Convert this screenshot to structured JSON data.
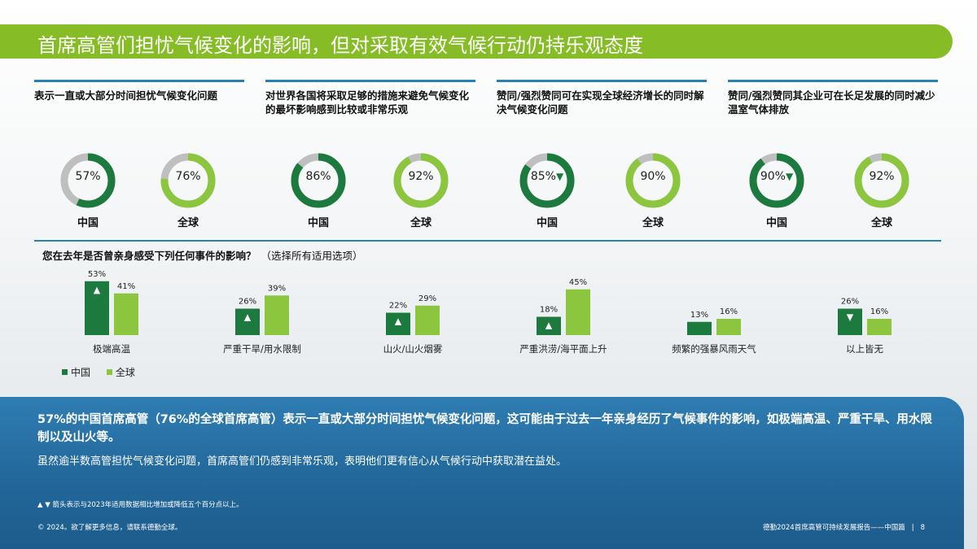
{
  "title": "首席高管们担忧气候变化的影响，但对采取有效气候行动仍持乐观态度",
  "colors": {
    "china": "#1d7a3e",
    "global": "#8cc63f",
    "remainder": "#bfbfbf",
    "rule": "#2a7fb8",
    "panel": "#22679a"
  },
  "topics": [
    {
      "text": "表示一直或大部分时间担忧气候变化问题"
    },
    {
      "text": "对世界各国将采取足够的措施来避免气候变化的最坏影响感到比较或非常乐观"
    },
    {
      "text": "赞同/强烈赞同可在实现全球经济增长的同时解决气候变化问题"
    },
    {
      "text": "赞同/强烈赞同其企业可在长足发展的同时减少温室气体排放"
    }
  ],
  "donuts": [
    {
      "value": 57,
      "label": "57%",
      "caption": "中国",
      "series": "china",
      "marker": ""
    },
    {
      "value": 76,
      "label": "76%",
      "caption": "全球",
      "series": "global",
      "marker": ""
    },
    {
      "value": 86,
      "label": "86%",
      "caption": "中国",
      "series": "china",
      "marker": ""
    },
    {
      "value": 92,
      "label": "92%",
      "caption": "全球",
      "series": "global",
      "marker": ""
    },
    {
      "value": 85,
      "label": "85%",
      "caption": "中国",
      "series": "china",
      "marker": "▼"
    },
    {
      "value": 90,
      "label": "90%",
      "caption": "全球",
      "series": "global",
      "marker": ""
    },
    {
      "value": 90,
      "label": "90%",
      "caption": "中国",
      "series": "china",
      "marker": "▼"
    },
    {
      "value": 92,
      "label": "92%",
      "caption": "全球",
      "series": "global",
      "marker": ""
    }
  ],
  "bar_question": "您在去年是否曾亲身感受下列任何事件的影响？",
  "bar_question_note": "（选择所有适用选项）",
  "chart_data": {
    "type": "bar",
    "categories": [
      "极端高温",
      "严重干旱/用水限制",
      "山火/山火烟雾",
      "严重洪涝/海平面上升",
      "频繁的强暴风雨天气",
      "以上皆无"
    ],
    "series": [
      {
        "name": "中国",
        "values": [
          53,
          26,
          22,
          18,
          13,
          26
        ],
        "labels": [
          "53%",
          "26%",
          "22%",
          "18%",
          "13%",
          "26%"
        ],
        "markers": [
          "▲",
          "▲",
          "▲",
          "▲",
          "",
          "▼"
        ]
      },
      {
        "name": "全球",
        "values": [
          41,
          39,
          29,
          45,
          16,
          16
        ],
        "labels": [
          "41%",
          "39%",
          "29%",
          "45%",
          "16%",
          "16%"
        ],
        "markers": [
          "",
          "",
          "",
          "",
          "",
          ""
        ]
      }
    ],
    "ylim": [
      0,
      60
    ],
    "legend": "bottom-left",
    "grid": false
  },
  "insight_bold": "57%的中国首席高管（76%的全球首席高管）表示一直或大部分时间担忧气候变化问题，这可能由于过去一年亲身经历了气候事件的影响，如极端高温、严重干旱、用水限制以及山火等。",
  "insight_normal": "虽然逾半数高管担忧气候变化问题，首席高管们仍感到非常乐观，表明他们更有信心从气候行动中获取潜在益处。",
  "footnote": "▲ ▼ 箭头表示与2023年适用数据相比增加或降低五个百分点以上。",
  "footer_left": "© 2024。欲了解更多信息，请联系德勤全球。",
  "footer_right": "德勤2024首席高管可持续发展报告——中国篇",
  "page_number": "8"
}
